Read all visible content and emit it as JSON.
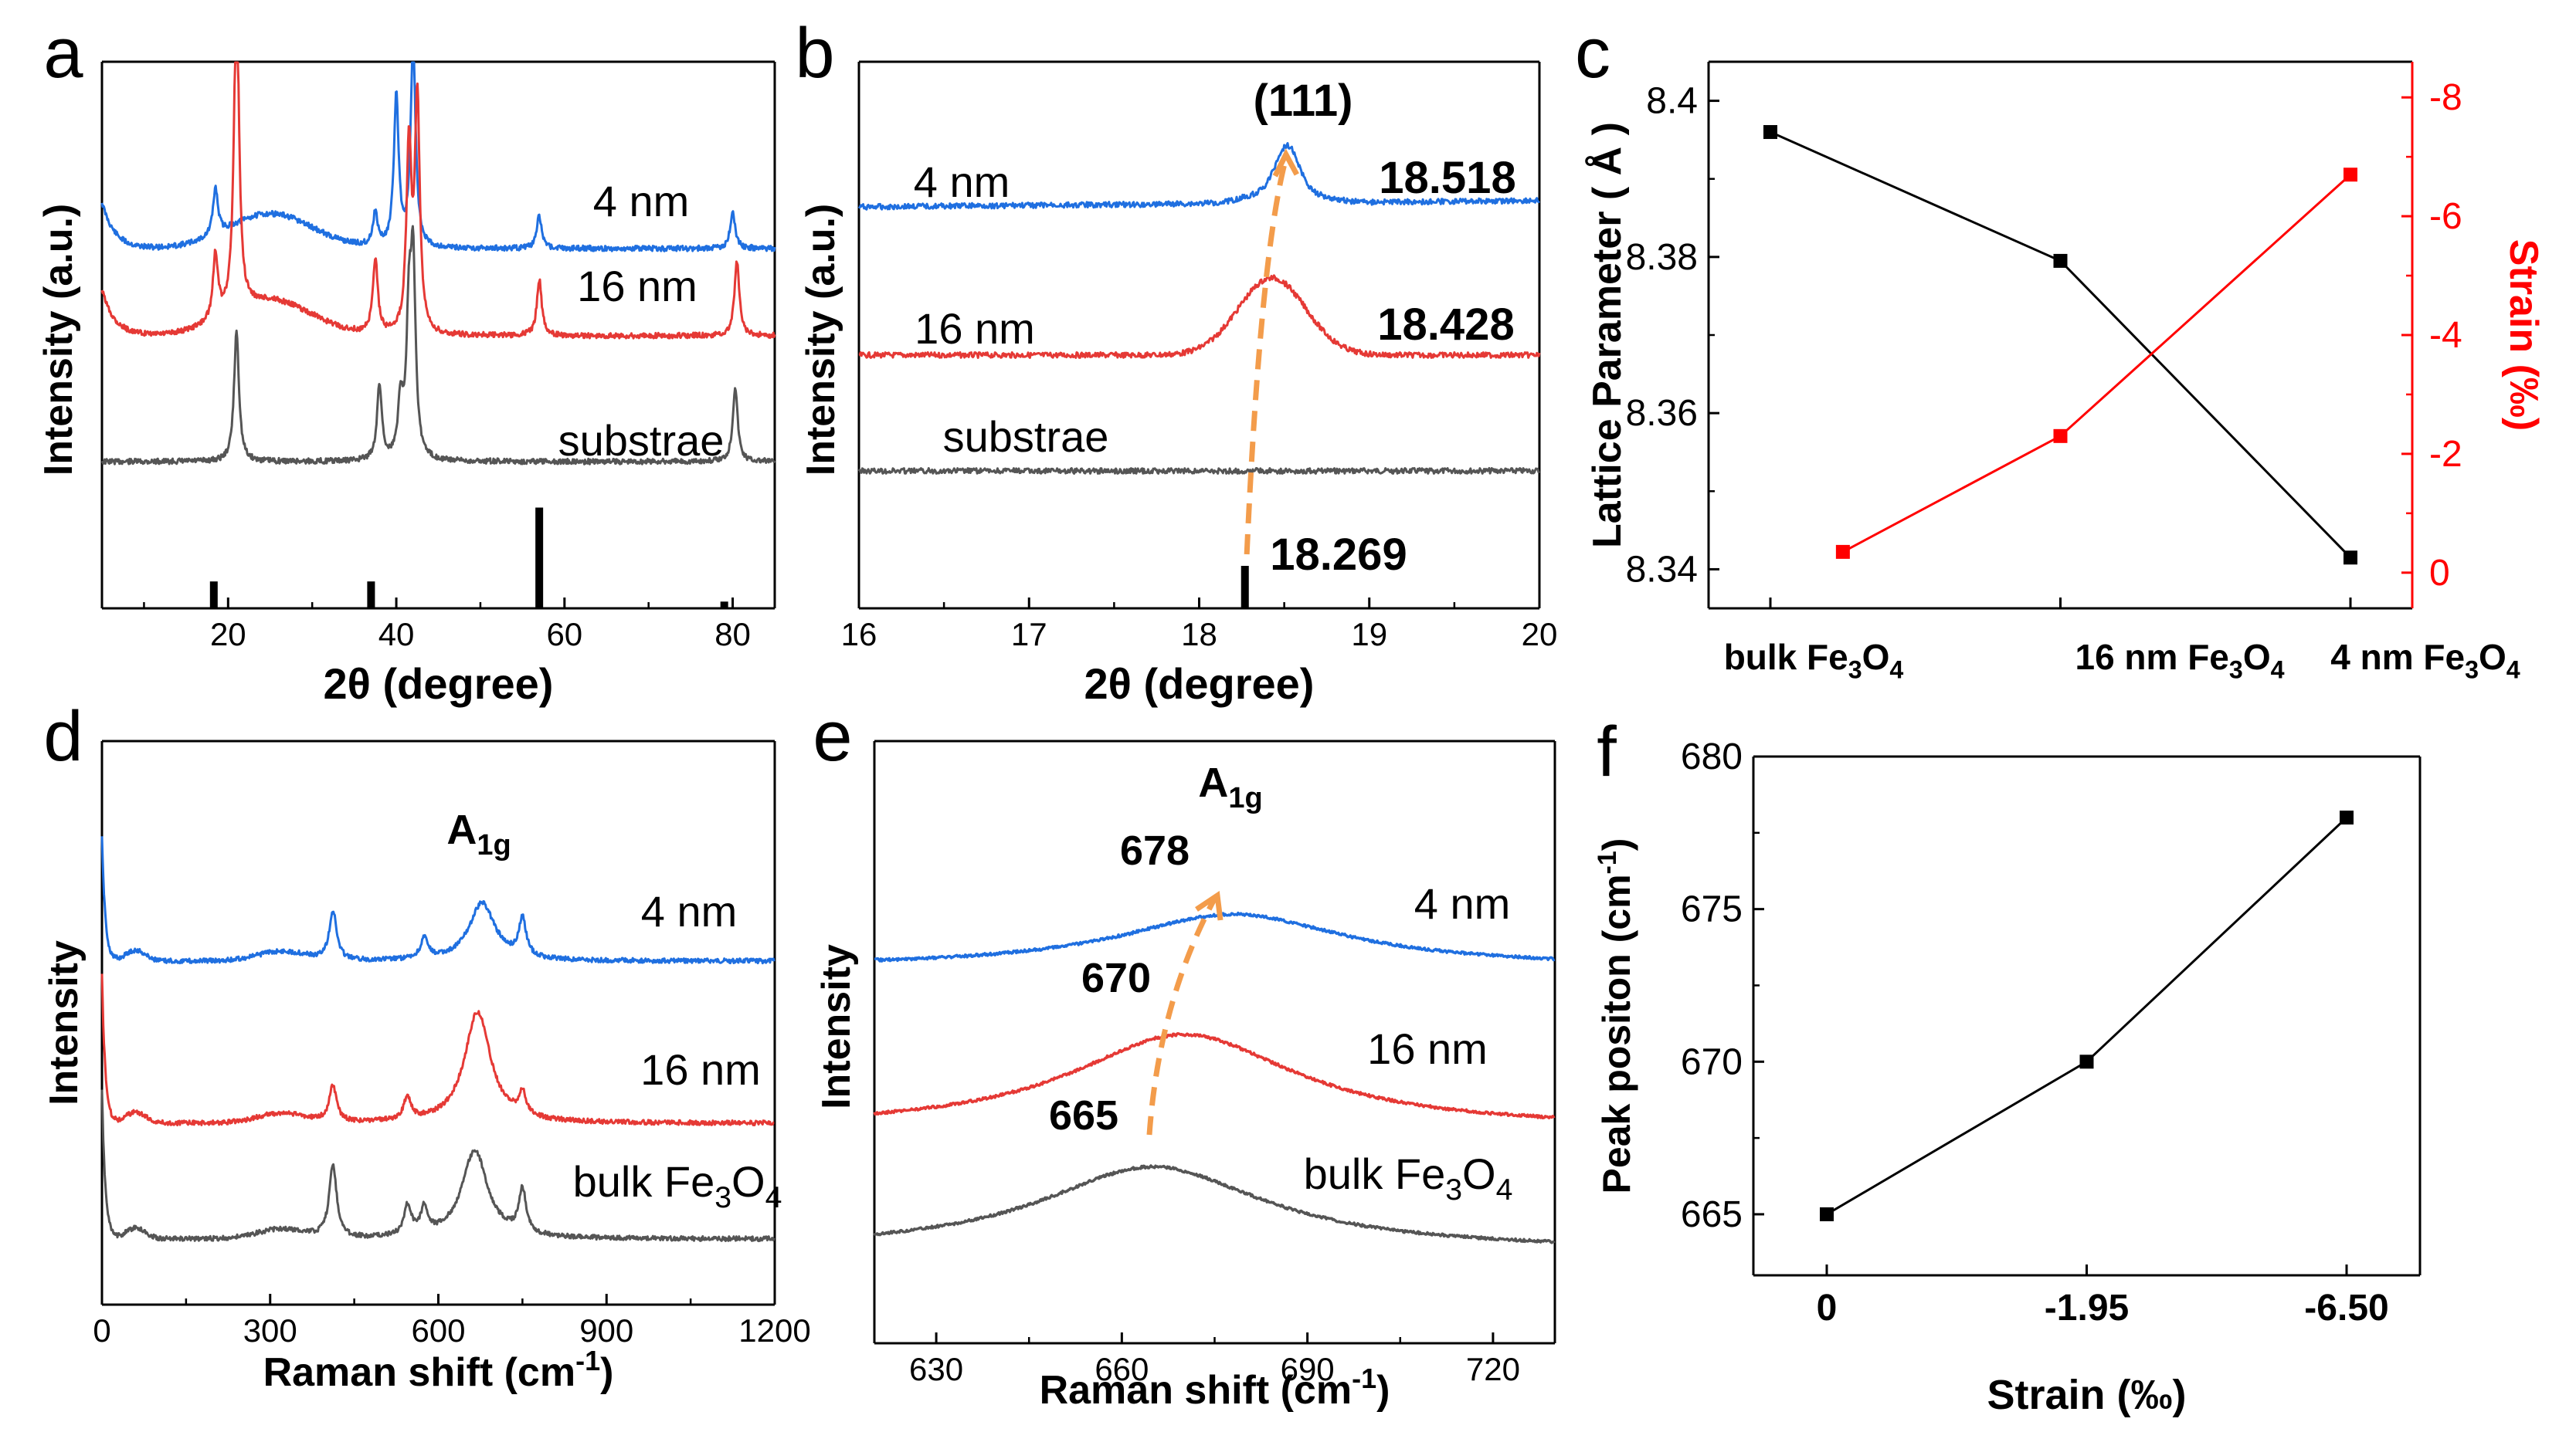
{
  "figure": {
    "panels": [
      {
        "letter": "a",
        "xlabel": "2θ (degree)",
        "ylabel": "Intensity (a.u.)",
        "xticks": [
          "20",
          "40",
          "60",
          "80"
        ],
        "labels": [
          "4 nm",
          "16 nm",
          "substrae"
        ]
      },
      {
        "letter": "b",
        "xlabel": "2θ (degree)",
        "ylabel": "Intensity (a.u.)",
        "xticks": [
          "16",
          "17",
          "18",
          "19",
          "20"
        ],
        "labels": [
          "4 nm",
          "16 nm",
          "substrae"
        ],
        "peak_label": "(111)",
        "values": [
          "18.518",
          "18.428",
          "18.269"
        ]
      },
      {
        "letter": "c",
        "ylabel": "Lattice Parameter ( Å )",
        "y2label": "Strain (‰)",
        "yticks": [
          "8.34",
          "8.36",
          "8.38",
          "8.4"
        ],
        "y2ticks": [
          "0",
          "-2",
          "-4",
          "-6",
          "-8"
        ],
        "categories": [
          "bulk Fe",
          "16 nm Fe",
          "4 nm Fe"
        ]
      },
      {
        "letter": "d",
        "xlabel": "Raman shift (cm",
        "ylabel": "Intensity",
        "xticks": [
          "0",
          "300",
          "600",
          "900",
          "1200"
        ],
        "labels": [
          "4 nm",
          "16 nm",
          "bulk Fe"
        ],
        "mode_label": "A",
        "mode_sub": "1g"
      },
      {
        "letter": "e",
        "xlabel": "Raman shift (cm",
        "ylabel": "Intensity",
        "xticks": [
          "630",
          "660",
          "690",
          "720"
        ],
        "labels": [
          "4 nm",
          "16 nm",
          "bulk Fe"
        ],
        "mode_label": "A",
        "mode_sub": "1g",
        "values": [
          "678",
          "670",
          "665"
        ]
      },
      {
        "letter": "f",
        "xlabel": "Strain (‰)",
        "ylabel": "Peak positon (cm",
        "xticks": [
          "0",
          "-1.95",
          "-6.50"
        ],
        "yticks": [
          "665",
          "670",
          "675",
          "680"
        ]
      }
    ],
    "formula_subs": [
      "3",
      "4"
    ],
    "cm_exp": "-1",
    "cm_close": ")"
  },
  "chart_data": [
    {
      "panel": "a",
      "type": "line",
      "title": "",
      "xlabel": "2θ (degree)",
      "ylabel": "Intensity (a.u.)",
      "xlim": [
        5,
        85
      ],
      "series": [
        {
          "name": "4 nm",
          "color": "#1f6fe0",
          "peaks": [
            [
              18.5,
              0.5
            ],
            [
              37.5,
              0.35
            ],
            [
              40,
              1.6
            ],
            [
              42,
              2.2
            ],
            [
              57,
              0.35
            ],
            [
              80,
              0.4
            ]
          ]
        },
        {
          "name": "16 nm",
          "color": "#e53935",
          "peaks": [
            [
              18.5,
              0.7
            ],
            [
              21,
              3.5
            ],
            [
              37.5,
              0.8
            ],
            [
              41.5,
              2.0
            ],
            [
              42.5,
              2.5
            ],
            [
              57,
              0.6
            ],
            [
              80.5,
              0.8
            ]
          ]
        },
        {
          "name": "substrae",
          "color": "#555555",
          "peaks": [
            [
              21,
              1.4
            ],
            [
              38,
              0.8
            ],
            [
              40.5,
              0.6
            ],
            [
              41.5,
              1.4
            ],
            [
              42,
              2.0
            ],
            [
              80.3,
              0.8
            ]
          ]
        }
      ],
      "reference_bars": [
        [
          18.3,
          0.12
        ],
        [
          37,
          0.12
        ],
        [
          57,
          0.45
        ],
        [
          79,
          0.03
        ]
      ]
    },
    {
      "panel": "b",
      "type": "line",
      "xlabel": "2θ (degree)",
      "ylabel": "Intensity (a.u.)",
      "xlim": [
        16,
        20
      ],
      "series": [
        {
          "name": "4 nm",
          "color": "#1f6fe0",
          "peak_center": 18.518
        },
        {
          "name": "16 nm",
          "color": "#e53935",
          "peak_center": 18.428
        },
        {
          "name": "substrae",
          "color": "#555555",
          "peak_center": null
        }
      ],
      "reference_peak": 18.269
    },
    {
      "panel": "c",
      "type": "line",
      "ylabel": "Lattice Parameter ( Å )",
      "y2label": "Strain (‰)",
      "categories": [
        "bulk Fe3O4",
        "16 nm Fe3O4",
        "4 nm Fe3O4"
      ],
      "series": [
        {
          "name": "Lattice Parameter",
          "axis": "left",
          "color": "#000000",
          "values": [
            8.396,
            8.3795,
            8.3415
          ]
        },
        {
          "name": "Strain",
          "axis": "right",
          "color": "#ff0000",
          "x_positions": [
            0.25,
            1,
            2
          ],
          "values": [
            -0.35,
            -2.3,
            -6.7
          ]
        }
      ],
      "ylim": [
        8.335,
        8.405
      ],
      "y2lim": [
        0.6,
        -8.6
      ]
    },
    {
      "panel": "d",
      "type": "line",
      "xlabel": "Raman shift (cm-1)",
      "ylabel": "Intensity",
      "xlim": [
        0,
        1200
      ],
      "series": [
        {
          "name": "4 nm",
          "color": "#1f6fe0",
          "peaks": [
            [
              412,
              0.85
            ],
            [
              575,
              0.35
            ],
            [
              678,
              1.0
            ],
            [
              750,
              0.65
            ]
          ]
        },
        {
          "name": "16 nm",
          "color": "#e53935",
          "peaks": [
            [
              412,
              0.55
            ],
            [
              545,
              0.35
            ],
            [
              670,
              1.7
            ],
            [
              750,
              0.35
            ]
          ]
        },
        {
          "name": "bulk Fe3O4",
          "color": "#555555",
          "peaks": [
            [
              412,
              1.0
            ],
            [
              545,
              0.4
            ],
            [
              575,
              0.35
            ],
            [
              665,
              1.2
            ],
            [
              750,
              0.6
            ]
          ]
        }
      ]
    },
    {
      "panel": "e",
      "type": "line",
      "xlabel": "Raman shift (cm-1)",
      "ylabel": "Intensity",
      "xlim": [
        620,
        730
      ],
      "series": [
        {
          "name": "4 nm",
          "color": "#1f6fe0",
          "peak_center": 678
        },
        {
          "name": "16 nm",
          "color": "#e53935",
          "peak_center": 670
        },
        {
          "name": "bulk Fe3O4",
          "color": "#555555",
          "peak_center": 665
        }
      ]
    },
    {
      "panel": "f",
      "type": "line",
      "xlabel": "Strain (‰)",
      "ylabel": "Peak positon (cm-1)",
      "categories": [
        "0",
        "-1.95",
        "-6.50"
      ],
      "values": [
        665,
        670,
        678
      ],
      "ylim": [
        663,
        680
      ],
      "color": "#000000"
    }
  ]
}
